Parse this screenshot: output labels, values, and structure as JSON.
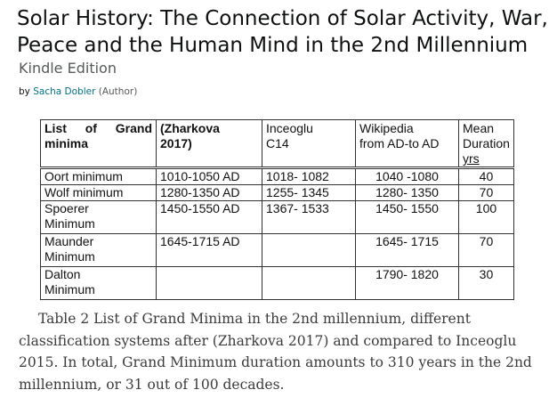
{
  "book": {
    "title": "Solar History: The Connection of Solar Activity, War, Peace and the Human Mind in the 2nd Millennium",
    "edition": "Kindle Edition",
    "by_prefix": "by",
    "author": "Sacha Dobler",
    "author_role": "(Author)"
  },
  "table": {
    "headers": {
      "col1_a": "List",
      "col1_b": "of",
      "col1_c": "Grand",
      "col1_d": "minima",
      "col2_a": "(Zharkova",
      "col2_b": "2017)",
      "col3_a": "Inceoglu",
      "col3_b": "C14",
      "col4_a": "Wikipedia",
      "col4_b": "from AD-to AD",
      "col5_a": "Mean",
      "col5_b": "Duration",
      "col5_c": "yrs"
    },
    "rows": [
      {
        "name_a": "Oort minimum",
        "name_b": "",
        "zharkova": "1010-1050 AD",
        "inceoglu": "1018- 1082",
        "wikipedia": "1040 -1080",
        "duration": "40"
      },
      {
        "name_a": "Wolf minimum",
        "name_b": "",
        "zharkova": "1280-1350 AD",
        "inceoglu": "1255- 1345",
        "wikipedia": "1280- 1350",
        "duration": "70"
      },
      {
        "name_a": "Spoerer",
        "name_b": "Minimum",
        "zharkova": "1450-1550 AD",
        "inceoglu": "1367- 1533",
        "wikipedia": "1450- 1550",
        "duration": "100"
      },
      {
        "name_a": "Maunder",
        "name_b": "Minimum",
        "zharkova": "1645-1715 AD",
        "inceoglu": "",
        "wikipedia": "1645- 1715",
        "duration": "70"
      },
      {
        "name_a": "Dalton",
        "name_b": "Minimum",
        "zharkova": "",
        "inceoglu": "",
        "wikipedia": "1790- 1820",
        "duration": "30"
      }
    ]
  },
  "caption": "Table 2 List of Grand Minima in the 2nd millennium, different classification systems after (Zharkova 2017) and compared to Inceoglu 2015. In total, Grand Minimum duration amounts to 310 years in the 2nd millennium, or 31 out of 100 decades.",
  "colors": {
    "link": "#007185",
    "muted": "#565959",
    "caption_text": "#3b3b3b"
  }
}
